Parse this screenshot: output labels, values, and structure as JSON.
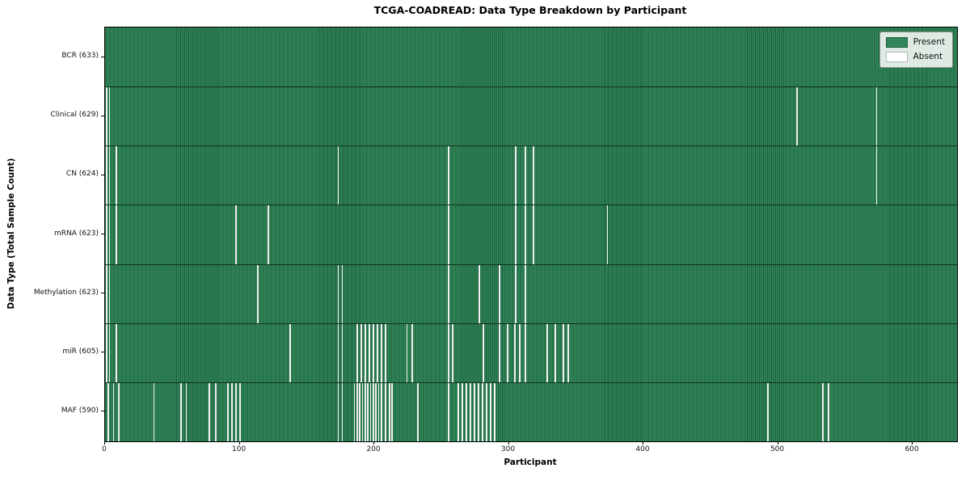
{
  "chart_data": {
    "type": "heatmap",
    "title": "TCGA-COADREAD: Data Type Breakdown by Participant",
    "xlabel": "Participant",
    "ylabel": "Data Type (Total Sample Count)",
    "x_ticks": [
      0,
      100,
      200,
      300,
      400,
      500,
      600
    ],
    "x_range": [
      0,
      633
    ],
    "total_participants": 633,
    "legend": {
      "present_label": "Present",
      "absent_label": "Absent",
      "position": "upper right"
    },
    "colors": {
      "present": "#31875a",
      "present_stripe": "#1d5c3a",
      "absent": "#f2f2f2",
      "background": "#ffffff"
    },
    "rows": [
      {
        "data_type": "BCR",
        "label": "BCR (633)",
        "present_count": 633,
        "absent_participants": []
      },
      {
        "data_type": "Clinical",
        "label": "Clinical (629)",
        "present_count": 629,
        "absent_participants": [
          1,
          3,
          514,
          573
        ]
      },
      {
        "data_type": "CN",
        "label": "CN (624)",
        "present_count": 624,
        "absent_participants": [
          1,
          3,
          8,
          173,
          255,
          305,
          312,
          318,
          573
        ]
      },
      {
        "data_type": "mRNA",
        "label": "mRNA (623)",
        "present_count": 623,
        "absent_participants": [
          1,
          3,
          8,
          97,
          121,
          255,
          305,
          312,
          318,
          373
        ]
      },
      {
        "data_type": "Methylation",
        "label": "Methylation (623)",
        "present_count": 623,
        "absent_participants": [
          1,
          3,
          113,
          173,
          176,
          255,
          278,
          293,
          305,
          312
        ]
      },
      {
        "data_type": "miR",
        "label": "miR (605)",
        "present_count": 605,
        "absent_participants": [
          1,
          3,
          8,
          137,
          173,
          176,
          187,
          190,
          193,
          196,
          199,
          202,
          205,
          208,
          224,
          228,
          255,
          258,
          281,
          293,
          299,
          304,
          308,
          312,
          328,
          334,
          340,
          344
        ]
      },
      {
        "data_type": "MAF",
        "label": "MAF (590)",
        "present_count": 590,
        "absent_participants": [
          2,
          6,
          10,
          36,
          56,
          60,
          77,
          82,
          91,
          94,
          97,
          100,
          173,
          176,
          185,
          187,
          189,
          191,
          193,
          195,
          197,
          199,
          201,
          203,
          205,
          208,
          211,
          213,
          232,
          255,
          262,
          265,
          268,
          271,
          274,
          277,
          280,
          283,
          286,
          289,
          492,
          533,
          537
        ]
      }
    ]
  }
}
